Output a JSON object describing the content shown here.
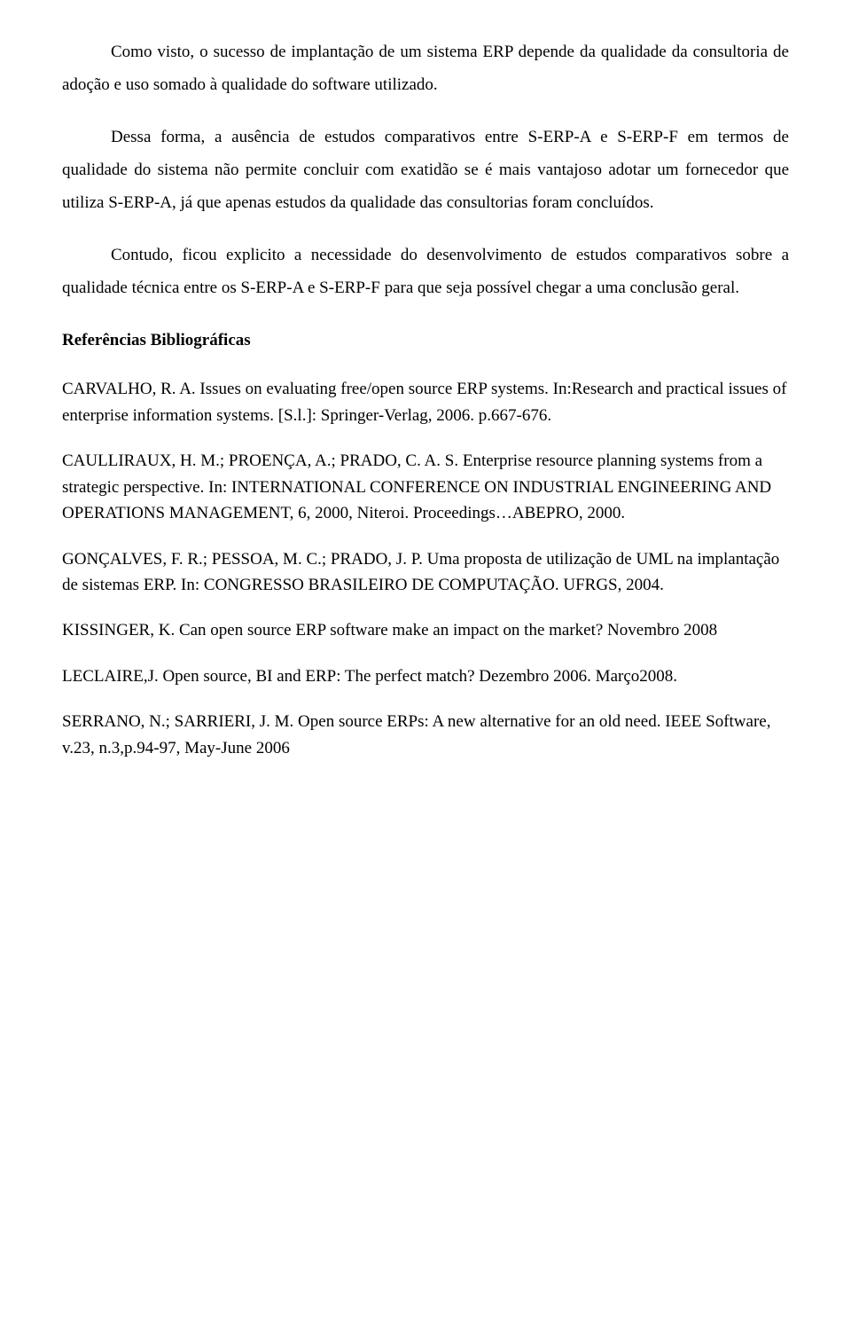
{
  "paragraphs": {
    "p1": "Como visto, o sucesso de implantação de um sistema ERP depende da qualidade da consultoria de adoção e uso somado à qualidade do software utilizado.",
    "p2": "Dessa forma, a ausência de estudos comparativos entre S-ERP-A e S-ERP-F em termos de qualidade do sistema não permite concluir com exatidão se é mais vantajoso adotar um fornecedor que utiliza S-ERP-A, já que apenas estudos da qualidade das consultorias foram concluídos.",
    "p3": "Contudo, ficou explicito a necessidade do desenvolvimento de estudos comparativos sobre a qualidade técnica entre os S-ERP-A e S-ERP-F para que seja possível chegar a uma conclusão geral."
  },
  "heading": "Referências Bibliográficas",
  "references": {
    "r1": "CARVALHO, R. A. Issues on evaluating free/open source ERP systems. In:Research and practical issues of enterprise information systems. [S.l.]: Springer-Verlag, 2006. p.667-676.",
    "r2": "CAULLIRAUX, H. M.; PROENÇA, A.; PRADO, C. A. S. Enterprise resource planning systems from a strategic perspective. In: INTERNATIONAL CONFERENCE ON   INDUSTRIAL ENGINEERING AND OPERATIONS MANAGEMENT, 6,  2000, Niteroi.  Proceedings…ABEPRO, 2000.",
    "r3": "GONÇALVES, F. R.; PESSOA, M. C.; PRADO, J.  P. Uma proposta de utilização de UML na implantação de sistemas ERP. In: CONGRESSO BRASILEIRO  DE COMPUTAÇÃO. UFRGS, 2004.",
    "r4": "KISSINGER,  K. Can open source ERP software make an impact on the market? Novembro 2008",
    "r5": "LECLAIRE,J. Open source, BI and ERP: The perfect match? Dezembro 2006. Março2008.",
    "r6": "SERRANO, N.; SARRIERI,  J. M. Open source ERPs: A new alternative for an old need. IEEE Software, v.23, n.3,p.94-97, May-June  2006"
  }
}
